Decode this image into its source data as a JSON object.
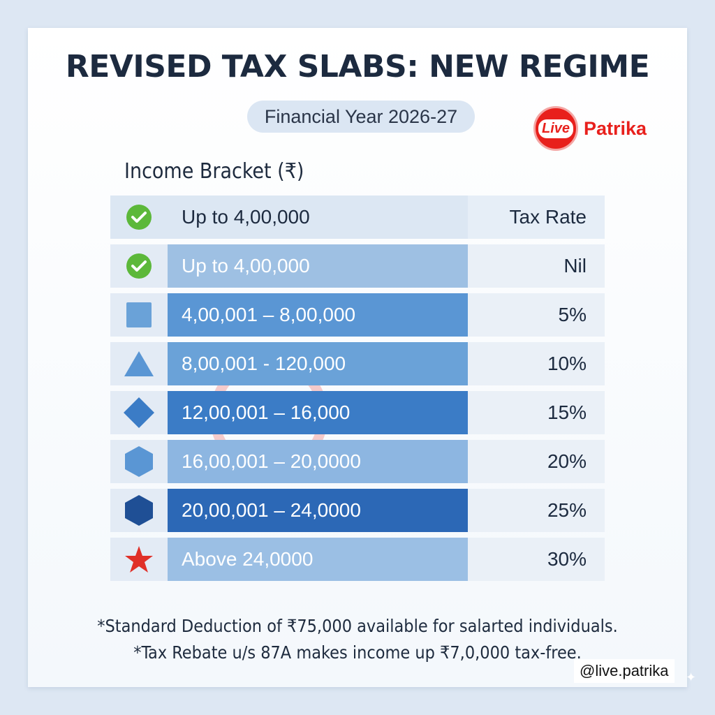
{
  "header": {
    "title": "REVISED TAX SLABS: NEW REGIME",
    "subtitle": "Financial Year 2026-27",
    "logo": {
      "badge": "Live",
      "name": "Patrika",
      "color": "#e8201c"
    }
  },
  "table": {
    "section_label": "Income Bracket (₹)",
    "header_row": {
      "icon": "check-circle-icon",
      "bracket": "Up to 4,00,000",
      "rate_label": "Tax Rate"
    },
    "rows": [
      {
        "icon": "check-circle-icon",
        "bracket": "Up to 4,00,000",
        "rate": "Nil",
        "color": "#9ec0e3"
      },
      {
        "icon": "square-icon",
        "bracket": "4,00,001 – 8,00,000",
        "rate": "5%",
        "color": "#5a96d4"
      },
      {
        "icon": "triangle-icon",
        "bracket": "8,00,001 - 120,000",
        "rate": "10%",
        "color": "#6aa2d8"
      },
      {
        "icon": "diamond-icon",
        "bracket": "12,00,001 – 16,000",
        "rate": "15%",
        "color": "#3b7cc6"
      },
      {
        "icon": "hexagon-icon",
        "bracket": "16,00,001 – 20,0000",
        "rate": "20%",
        "color": "#8db6e1"
      },
      {
        "icon": "hexagon-dark-icon",
        "bracket": "20,00,001 – 24,0000",
        "rate": "25%",
        "color": "#2c68b6"
      },
      {
        "icon": "star-icon",
        "bracket": "Above 24,0000",
        "rate": "30%",
        "color": "#9bbfe4"
      }
    ]
  },
  "watermark": {
    "text": "Patrika"
  },
  "notes": [
    "*Standard Deduction of ₹75,000 available for salarted individuals.",
    "*Tax Rebate u/s 87A makes income up ₹7,0,000 tax-free."
  ],
  "handle": "@live.patrika"
}
